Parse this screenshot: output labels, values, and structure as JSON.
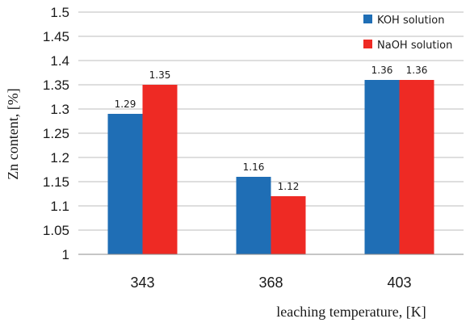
{
  "chart_data": {
    "type": "bar",
    "title": "",
    "xlabel": "leaching temperature, [K]",
    "ylabel": "Zn content, [%]",
    "categories": [
      "343",
      "368",
      "403"
    ],
    "series": [
      {
        "name": "KOH solution",
        "color": "#1f6eb5",
        "values": [
          1.29,
          1.16,
          1.36
        ],
        "labels": [
          "1.29",
          "1.16",
          "1.36"
        ]
      },
      {
        "name": "NaOH solution",
        "color": "#ee2a24",
        "values": [
          1.35,
          1.12,
          1.36
        ],
        "labels": [
          "1.35",
          "1.12",
          "1.36"
        ]
      }
    ],
    "ylim": [
      1,
      1.5
    ],
    "yticks": [
      "1",
      "1.05",
      "1.1",
      "1.15",
      "1.2",
      "1.25",
      "1.3",
      "1.35",
      "1.4",
      "1.45",
      "1.5"
    ],
    "grid": true,
    "legend_position": "top-right"
  }
}
